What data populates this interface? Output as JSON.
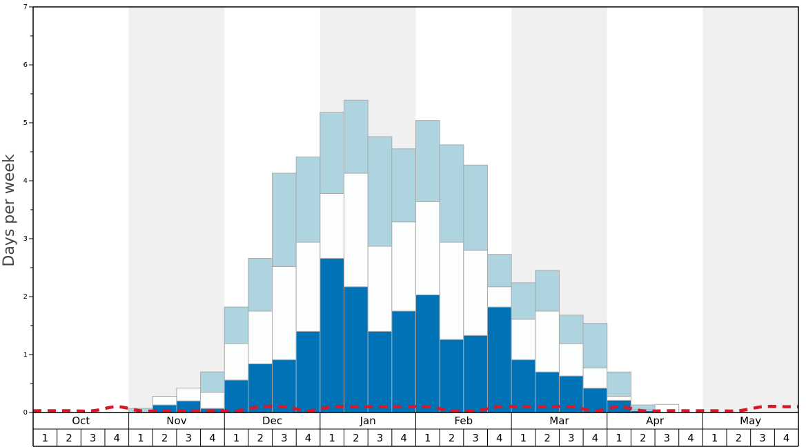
{
  "chart_data": {
    "type": "bar",
    "stacked": true,
    "ylabel": "Days per week",
    "ylim": [
      0,
      7
    ],
    "ytick_labels": [
      "0",
      "1",
      "2",
      "3",
      "4",
      "5",
      "6",
      "7"
    ],
    "months": [
      "Oct",
      "Nov",
      "Dec",
      "Jan",
      "Feb",
      "Mar",
      "Apr",
      "May"
    ],
    "weeks_per_month": [
      "1",
      "2",
      "3",
      "4"
    ],
    "shaded_months": [
      "Nov",
      "Jan",
      "Mar",
      "May"
    ],
    "series": [
      {
        "color": "#0072b5",
        "values": [
          0,
          0,
          0,
          0,
          0,
          0.13,
          0.2,
          0.07,
          0.56,
          0.84,
          0.91,
          1.4,
          2.66,
          2.17,
          1.4,
          1.75,
          2.03,
          1.26,
          1.33,
          1.82,
          0.91,
          0.7,
          0.63,
          0.42,
          0.21,
          0.03,
          0,
          0,
          0,
          0,
          0,
          0
        ]
      },
      {
        "color": "#fcfdfd",
        "values": [
          0,
          0,
          0,
          0,
          0,
          0.15,
          0.22,
          0.28,
          0.63,
          0.91,
          1.61,
          1.54,
          1.12,
          1.96,
          1.47,
          1.54,
          1.61,
          1.68,
          1.47,
          0.35,
          0.7,
          1.05,
          0.56,
          0.35,
          0.07,
          0.02,
          0.14,
          0,
          0,
          0,
          0,
          0
        ]
      },
      {
        "color": "#aed4e0",
        "values": [
          0,
          0,
          0,
          0,
          0.07,
          0,
          0,
          0.35,
          0.63,
          0.91,
          1.61,
          1.47,
          1.4,
          1.26,
          1.89,
          1.26,
          1.4,
          1.68,
          1.47,
          0.56,
          0.63,
          0.7,
          0.49,
          0.77,
          0.42,
          0.08,
          0,
          0,
          0,
          0,
          0,
          0
        ]
      }
    ],
    "line": {
      "color": "#d6182a",
      "style": "dashed",
      "values": [
        0.03,
        0.03,
        0.03,
        0.1,
        0.03,
        0.03,
        0.03,
        0.03,
        0.03,
        0.1,
        0.1,
        0.03,
        0.1,
        0.1,
        0.1,
        0.1,
        0.1,
        0.03,
        0.03,
        0.1,
        0.1,
        0.1,
        0.1,
        0.03,
        0.1,
        0.03,
        0.03,
        0.03,
        0.03,
        0.03,
        0.1,
        0.1
      ]
    },
    "grid": false,
    "legend": "none"
  }
}
